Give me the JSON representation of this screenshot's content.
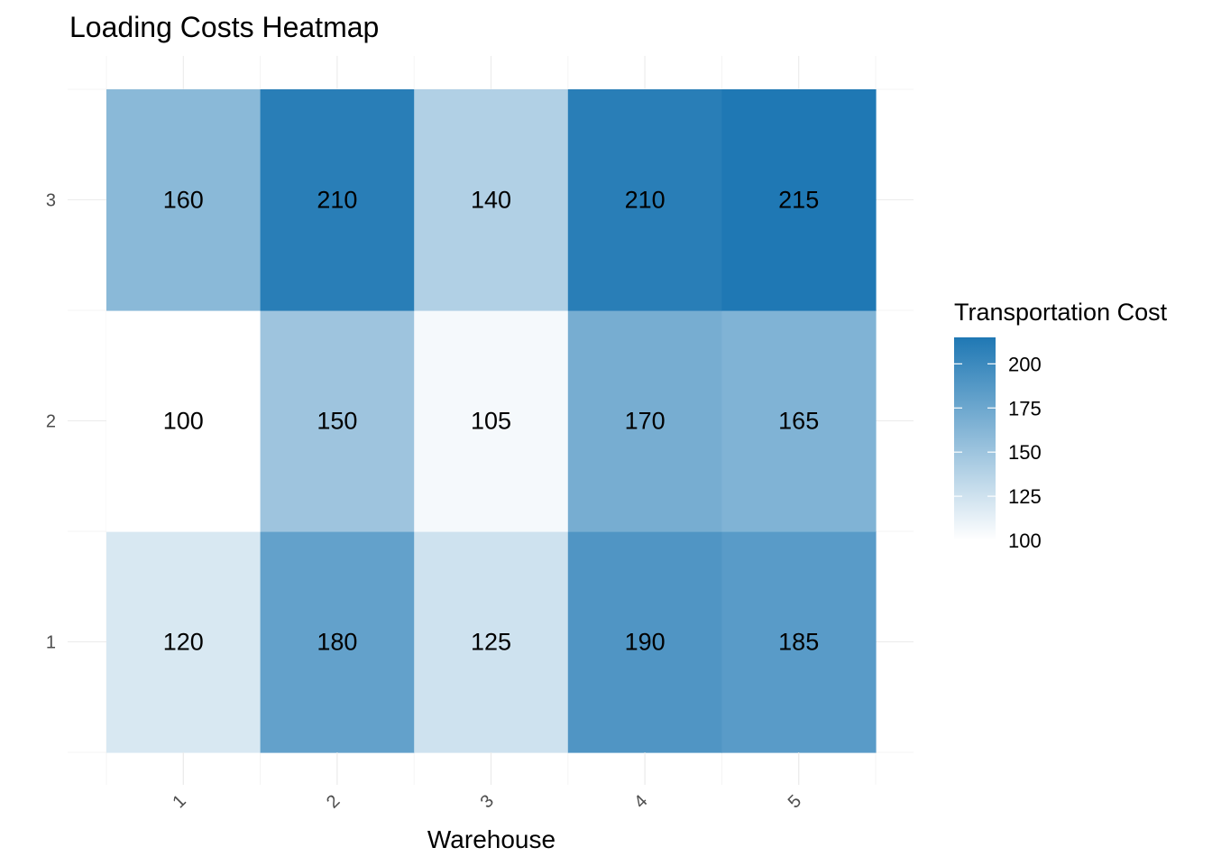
{
  "chart_data": {
    "type": "heatmap",
    "title": "Loading Costs Heatmap",
    "xlabel": "Warehouse",
    "ylabel": "",
    "x_categories": [
      "1",
      "2",
      "3",
      "4",
      "5"
    ],
    "y_categories": [
      "1",
      "2",
      "3"
    ],
    "values": [
      [
        120,
        180,
        125,
        190,
        185
      ],
      [
        100,
        150,
        105,
        170,
        165
      ],
      [
        160,
        210,
        140,
        210,
        215
      ]
    ],
    "x_tick_rotation_deg": -45,
    "grid": true,
    "legend": {
      "title": "Transportation Cost",
      "position": "right",
      "breaks": [
        100,
        125,
        150,
        175,
        200
      ],
      "range": [
        100,
        215
      ],
      "low_color": "#ffffff",
      "high_color": "#1f78b4"
    }
  }
}
